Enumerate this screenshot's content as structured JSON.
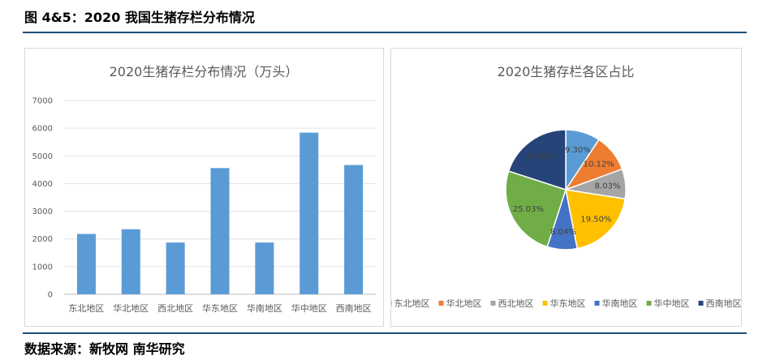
{
  "figure_title": "图 4&5：2020 我国生猪存栏分布情况",
  "source": "数据来源：新牧网 南华研究",
  "chart_data": [
    {
      "type": "bar",
      "title": "2020生猪存栏分布情况（万头）",
      "categories": [
        "东北地区",
        "华北地区",
        "西北地区",
        "华东地区",
        "华南地区",
        "华中地区",
        "西南地区"
      ],
      "values": [
        2180,
        2350,
        1870,
        4560,
        1870,
        5840,
        4670
      ],
      "ylim": [
        0,
        7000
      ],
      "yticks": [
        "0",
        "1000",
        "2000",
        "3000",
        "4000",
        "5000",
        "6000",
        "7000"
      ],
      "grid": true,
      "color": "#5b9bd5"
    },
    {
      "type": "pie",
      "title": "2020生猪存栏各区占比",
      "categories": [
        "东北地区",
        "华北地区",
        "西北地区",
        "华东地区",
        "华南地区",
        "华中地区",
        "西南地区"
      ],
      "values": [
        9.3,
        10.12,
        8.03,
        19.5,
        8.04,
        25.03,
        19.98
      ],
      "labels": [
        "9.30%",
        "10.12%",
        "8.03%",
        "19.50%",
        "8.04%",
        "25.03%",
        "19.98%"
      ],
      "colors": [
        "#5b9bd5",
        "#ed7d31",
        "#a5a5a5",
        "#ffc000",
        "#4472c4",
        "#70ad47",
        "#264478"
      ],
      "legend": "bottom"
    }
  ]
}
